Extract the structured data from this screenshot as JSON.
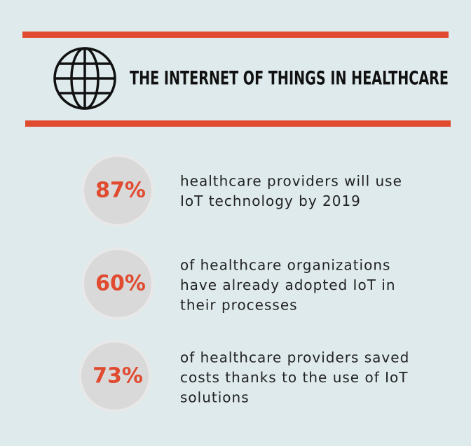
{
  "header": {
    "title": "THE INTERNET OF THINGS IN HEALTHCARE"
  },
  "stats": [
    {
      "value": "87%",
      "lines": [
        "healthcare providers will use",
        "IoT technology by 2019"
      ]
    },
    {
      "value": "60%",
      "lines": [
        "of healthcare organizations",
        "have already adopted IoT in",
        "their processes"
      ]
    },
    {
      "value": "73%",
      "lines": [
        "of healthcare providers saved",
        "costs thanks to the use of IoT",
        "solutions"
      ]
    }
  ]
}
